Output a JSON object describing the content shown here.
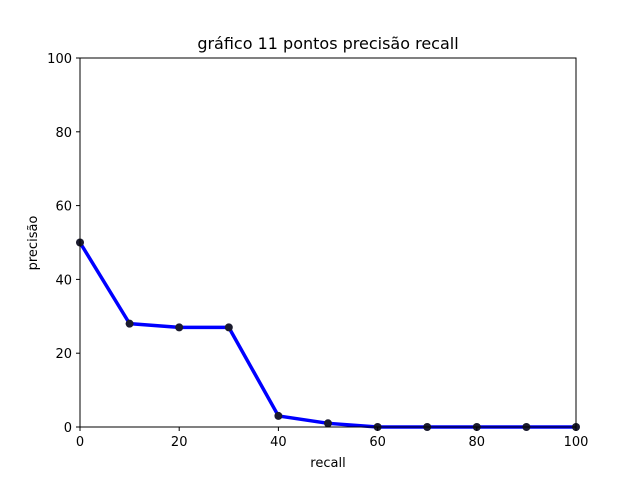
{
  "chart_data": {
    "type": "line",
    "title": "gráfico 11 pontos precisão recall",
    "xlabel": "recall",
    "ylabel": "precisão",
    "xlim": [
      0,
      100
    ],
    "ylim": [
      0,
      100
    ],
    "x_ticks": [
      0,
      20,
      40,
      60,
      80,
      100
    ],
    "y_ticks": [
      0,
      20,
      40,
      60,
      80,
      100
    ],
    "grid": false,
    "series": [
      {
        "x": [
          0,
          10,
          20,
          30,
          40,
          50,
          60,
          70,
          80,
          90,
          100
        ],
        "y": [
          50,
          28,
          27,
          27,
          3,
          1,
          0,
          0,
          0,
          0,
          0
        ],
        "line_color": "#0000ff",
        "marker_color": "#1a1a2e"
      }
    ]
  }
}
